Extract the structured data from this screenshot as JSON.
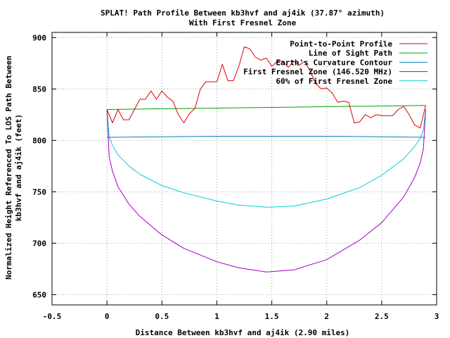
{
  "chart_data": {
    "type": "line",
    "title": "SPLAT! Path Profile Between kb3hvf and aj4ik (37.87° azimuth)",
    "subtitle": "With First Fresnel Zone",
    "xlabel": "Distance Between kb3hvf and aj4ik (2.90 miles)",
    "ylabel_lines": [
      "Normalized Height Referenced To LOS Path Between",
      "kb3hvf and aj4ik (feet)"
    ],
    "xlim": [
      -0.5,
      3
    ],
    "ylim": [
      640,
      905
    ],
    "xticks": [
      -0.5,
      0,
      0.5,
      1,
      1.5,
      2,
      2.5,
      3
    ],
    "xtick_labels": [
      "-0.5",
      "0",
      "0.5",
      "1",
      "1.5",
      "2",
      "2.5",
      "3"
    ],
    "yticks": [
      650,
      700,
      750,
      800,
      850,
      900
    ],
    "ytick_labels": [
      "650",
      "700",
      "750",
      "800",
      "850",
      "900"
    ],
    "grid": true,
    "legend_position": "top-right",
    "series": [
      {
        "name": "Point-to-Point Profile",
        "color": "#e00000",
        "x": [
          0,
          0.05,
          0.1,
          0.15,
          0.2,
          0.25,
          0.3,
          0.35,
          0.4,
          0.45,
          0.5,
          0.55,
          0.6,
          0.65,
          0.7,
          0.75,
          0.8,
          0.85,
          0.9,
          0.95,
          1.0,
          1.05,
          1.1,
          1.15,
          1.2,
          1.25,
          1.3,
          1.35,
          1.4,
          1.45,
          1.5,
          1.55,
          1.6,
          1.65,
          1.7,
          1.75,
          1.8,
          1.85,
          1.9,
          1.95,
          2.0,
          2.05,
          2.1,
          2.15,
          2.2,
          2.25,
          2.3,
          2.35,
          2.4,
          2.45,
          2.5,
          2.55,
          2.6,
          2.65,
          2.7,
          2.75,
          2.8,
          2.85,
          2.9
        ],
        "values": [
          830,
          817,
          830,
          820,
          820,
          830,
          840,
          840,
          848,
          840,
          848,
          842,
          838,
          825,
          817,
          826,
          831,
          850,
          857,
          857,
          857,
          874,
          858,
          858,
          872,
          891,
          889,
          881,
          878,
          880,
          872,
          877,
          877,
          871,
          877,
          873,
          877,
          867,
          855,
          850,
          851,
          846,
          837,
          838,
          837,
          817,
          818,
          825,
          822,
          825,
          824,
          824,
          824,
          830,
          833,
          825,
          815,
          812,
          834
        ]
      },
      {
        "name": "Line of Sight Path",
        "color": "#00a000",
        "x": [
          0,
          2.9
        ],
        "values": [
          830,
          834
        ]
      },
      {
        "name": "Earth's Curvature Contour",
        "color": "#0080c0",
        "x": [
          0,
          0.5,
          1.0,
          1.45,
          2.0,
          2.5,
          2.9
        ],
        "values": [
          803,
          803.5,
          804,
          804,
          804,
          803.5,
          803
        ]
      },
      {
        "name": "First Fresnel Zone (146.520 MHz)",
        "color": "#a000c0",
        "x": [
          0,
          0.02,
          0.05,
          0.1,
          0.2,
          0.3,
          0.5,
          0.7,
          1.0,
          1.2,
          1.45,
          1.7,
          2.0,
          2.3,
          2.5,
          2.7,
          2.8,
          2.85,
          2.88,
          2.9
        ],
        "values": [
          830,
          784,
          770,
          755,
          738,
          726,
          708,
          695,
          682,
          676,
          672,
          674,
          684,
          703,
          720,
          745,
          764,
          778,
          792,
          830
        ]
      },
      {
        "name": "60% of First Fresnel Zone",
        "color": "#00d0d0",
        "x": [
          0,
          0.02,
          0.05,
          0.1,
          0.2,
          0.3,
          0.5,
          0.7,
          1.0,
          1.2,
          1.45,
          1.7,
          2.0,
          2.3,
          2.5,
          2.7,
          2.8,
          2.85,
          2.88,
          2.9
        ],
        "values": [
          830,
          803,
          795,
          786,
          775,
          767,
          756,
          749,
          741,
          737,
          735,
          736,
          743,
          754,
          766,
          782,
          794,
          802,
          810,
          830
        ]
      }
    ]
  }
}
